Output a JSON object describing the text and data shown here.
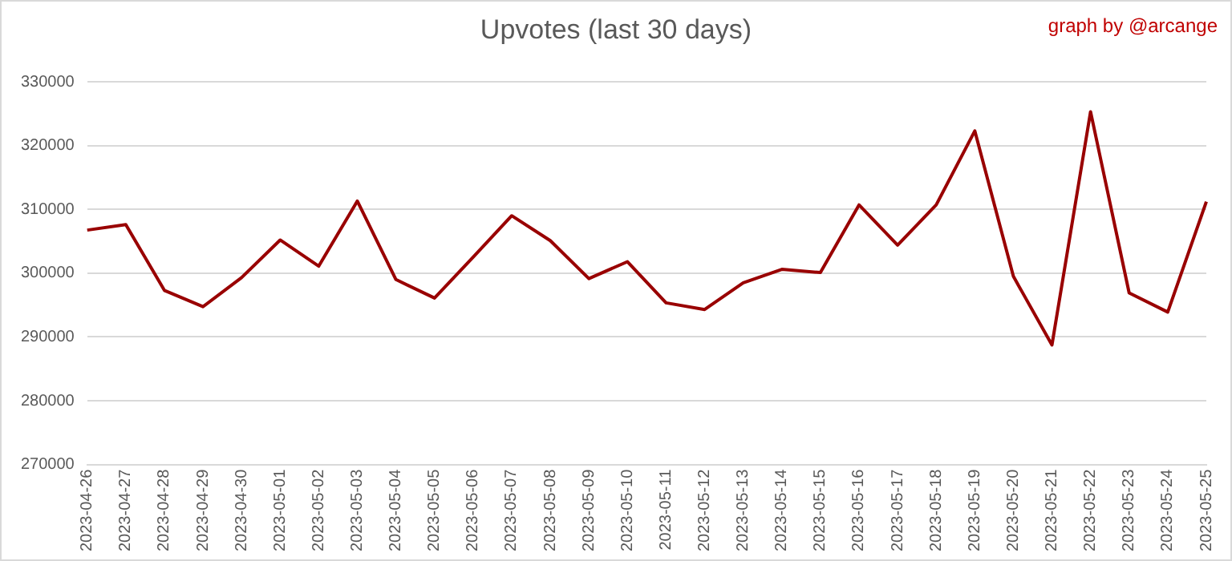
{
  "chart_data": {
    "type": "line",
    "title": "Upvotes (last 30 days)",
    "annotations": [
      "graph by @arcange"
    ],
    "categories": [
      "2023-04-26",
      "2023-04-27",
      "2023-04-28",
      "2023-04-29",
      "2023-04-30",
      "2023-05-01",
      "2023-05-02",
      "2023-05-03",
      "2023-05-04",
      "2023-05-05",
      "2023-05-06",
      "2023-05-07",
      "2023-05-08",
      "2023-05-09",
      "2023-05-10",
      "2023-05-11",
      "2023-05-12",
      "2023-05-13",
      "2023-05-14",
      "2023-05-15",
      "2023-05-16",
      "2023-05-17",
      "2023-05-18",
      "2023-05-19",
      "2023-05-20",
      "2023-05-21",
      "2023-05-22",
      "2023-05-23",
      "2023-05-24",
      "2023-05-25"
    ],
    "series": [
      {
        "color": "#990000",
        "values": [
          306750,
          307600,
          297300,
          294750,
          299300,
          305200,
          301100,
          311300,
          299000,
          296100,
          302500,
          309000,
          305100,
          299150,
          301800,
          295350,
          294300,
          298500,
          300600,
          300100,
          310700,
          304400,
          310700,
          322300,
          299500,
          288750,
          325300,
          296900,
          293900,
          311200
        ]
      }
    ],
    "ylim": [
      270000,
      330000
    ],
    "yticks": [
      270000,
      280000,
      290000,
      300000,
      310000,
      320000,
      330000
    ],
    "grid": "y",
    "legend": false,
    "marker": "none",
    "line_style": "solid"
  }
}
